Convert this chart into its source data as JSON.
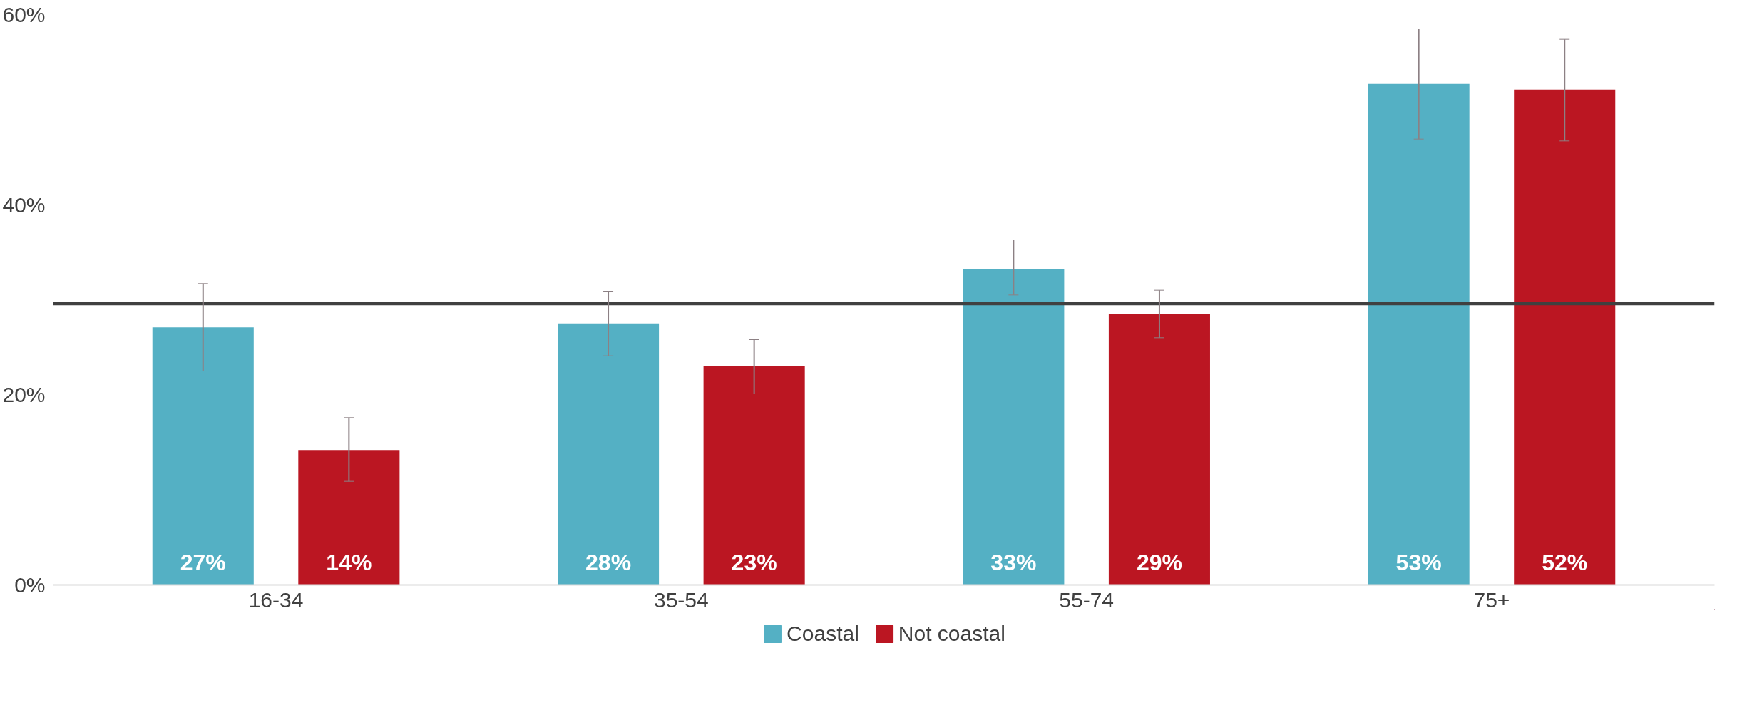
{
  "chart_data": {
    "type": "bar",
    "categories": [
      "16-34",
      "35-54",
      "55-74",
      "75+"
    ],
    "series": [
      {
        "name": "Coastal",
        "color": "#54b0c4",
        "values": [
          27.1,
          27.5,
          33.2,
          52.7
        ],
        "value_labels": [
          "27%",
          "28%",
          "33%",
          "53%"
        ],
        "errors": [
          [
            22.5,
            31.7
          ],
          [
            24.1,
            30.9
          ],
          [
            30.5,
            36.3
          ],
          [
            46.9,
            58.5
          ]
        ]
      },
      {
        "name": "Not coastal",
        "color": "#bb1622",
        "values": [
          14.2,
          23.0,
          28.5,
          52.1
        ],
        "value_labels": [
          "14%",
          "23%",
          "29%",
          "52%"
        ],
        "errors": [
          [
            10.9,
            17.6
          ],
          [
            20.1,
            25.8
          ],
          [
            26.0,
            31.0
          ],
          [
            46.7,
            57.4
          ]
        ]
      }
    ],
    "ylim": [
      0,
      60
    ],
    "yticks": [
      {
        "value": 0,
        "label": "0%"
      },
      {
        "value": 20,
        "label": "20%"
      },
      {
        "value": 40,
        "label": "40%"
      },
      {
        "value": 60,
        "label": "60%"
      }
    ],
    "ref_lines": [
      {
        "axis": "y",
        "value": 29.6,
        "color": "#404040"
      }
    ],
    "grid": false,
    "legend": "bottom"
  }
}
